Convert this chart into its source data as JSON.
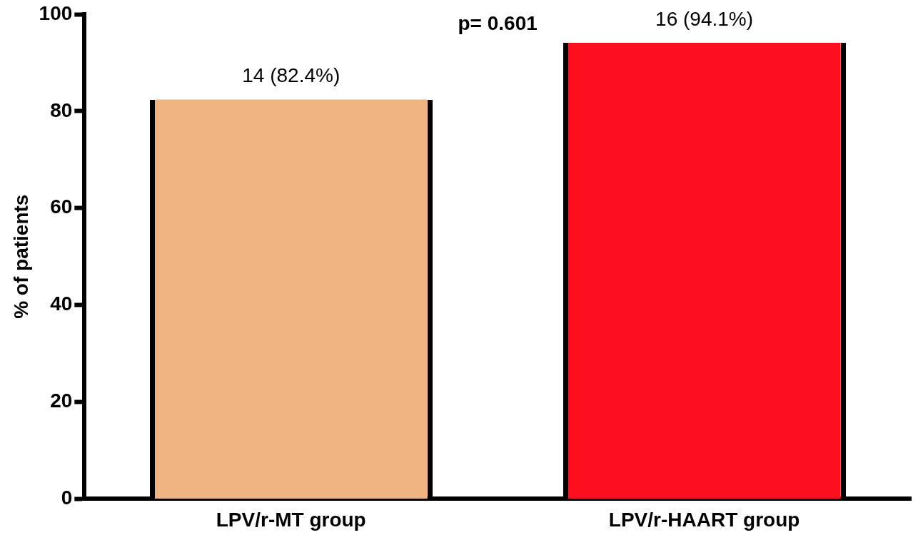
{
  "chart_data": {
    "type": "bar",
    "ylabel": "% of patients",
    "categories": [
      "LPV/r-MT group",
      "LPV/r-HAART group"
    ],
    "values": [
      82.4,
      94.1
    ],
    "colors": [
      "#f0b482",
      "#fc101e"
    ],
    "value_labels": [
      "14 (82.4%)",
      "16 (94.1%)"
    ],
    "annotations": [
      "p= 0.601"
    ],
    "ylim": [
      0,
      100
    ],
    "yticks": [
      0,
      20,
      40,
      60,
      80,
      100
    ],
    "grid": false,
    "legend": false
  }
}
